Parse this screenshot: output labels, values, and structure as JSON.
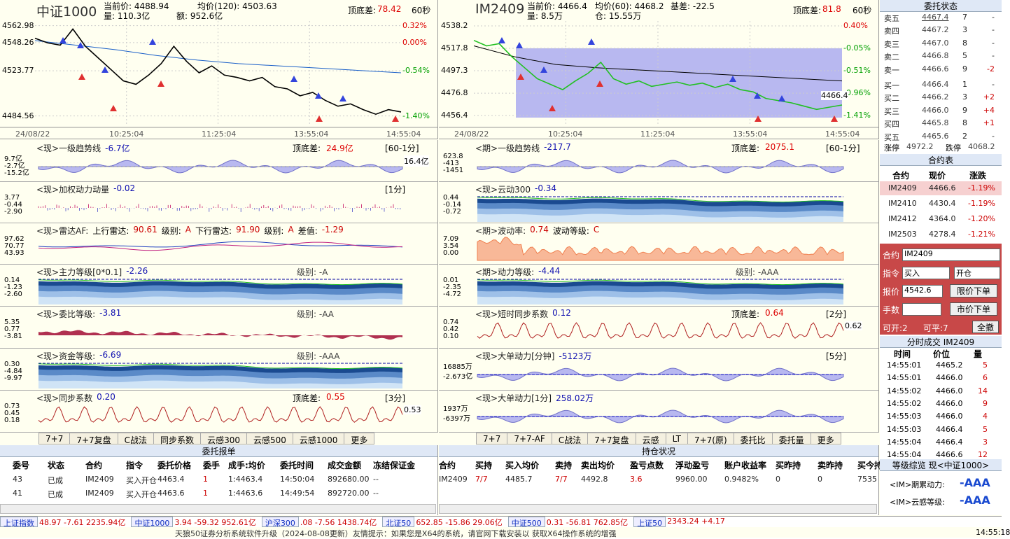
{
  "main_left": {
    "name": "中证1000",
    "info": [
      "当前价: 4488.94",
      "均价(120): 4503.63",
      "量: 110.3亿",
      "额: 952.6亿"
    ],
    "diff_label": "顶底差:",
    "diff": "78.42",
    "period": "60秒",
    "ylim": [
      4477,
      4567
    ],
    "yticks": [
      4484.56,
      4523.77,
      4548.26,
      4562.98
    ],
    "pct": [
      "-1.40%",
      "-0.54%",
      "0.00%",
      "0.32%"
    ],
    "xlabels": [
      "24/08/22",
      "10:25:04",
      "11:25:04",
      "13:55:04",
      "14:55:04"
    ],
    "price": [
      4552,
      4548,
      4546,
      4560,
      4545,
      4535,
      4525,
      4515,
      4512,
      4520,
      4530,
      4545,
      4532,
      4522,
      4528,
      4520,
      4518,
      4515,
      4518,
      4510,
      4508,
      4502,
      4505,
      4498,
      4493,
      4495,
      4490,
      4486,
      4490,
      4488
    ],
    "ma": [
      4550,
      4546,
      4542,
      4537,
      4533,
      4530,
      4528,
      4526,
      4524,
      4522
    ]
  },
  "main_right": {
    "name": "IM2409",
    "info": [
      "当前价: 4466.4",
      "均价(60): 4468.2",
      "基差: -22.5",
      "量: 8.5万",
      "仓: 15.55万"
    ],
    "diff_label": "顶底差:",
    "diff": "81.8",
    "period": "60秒",
    "ylim": [
      4448.1,
      4542.7
    ],
    "yticks": [
      4456.4,
      4476.8,
      4497.3,
      4517.8,
      4538.2
    ],
    "pct": [
      "-1.41%",
      "-0.96%",
      "-0.51%",
      "-0.05%",
      "0.40%"
    ],
    "xlabels": [
      "24/08/22",
      "10:25:04",
      "11:25:04",
      "13:55:04",
      "14:55:04"
    ],
    "last": "4466.4",
    "price": [
      4525,
      4520,
      4522,
      4510,
      4500,
      4490,
      4485,
      4480,
      4488,
      4495,
      4505,
      4490,
      4485,
      4488,
      4483,
      4485,
      4487,
      4484,
      4486,
      4482,
      4485,
      4480,
      4478,
      4472,
      4470,
      4468,
      4465,
      4462,
      4464,
      4466
    ],
    "ma": [
      4520,
      4510,
      4503,
      4500,
      4498,
      4496,
      4494,
      4492,
      4490,
      4488
    ]
  },
  "panels_left": [
    {
      "title": "<现>一级趋势线",
      "value": "-6.7亿",
      "diff_label": "顶底差:",
      "diff": "24.9亿",
      "period": "[60-1分]",
      "ylabels": [
        "9.7亿",
        "-2.7亿",
        "-15.2亿"
      ],
      "side": "16.4亿"
    },
    {
      "title": "<现>加权动力动量",
      "value": "-0.02",
      "period": "[1分]",
      "ylabels": [
        "3.77",
        "-0.44",
        "-2.90"
      ]
    },
    {
      "title": "<现>雷达AF:",
      "items": [
        {
          "l": "上行雷达:",
          "v": "90.61"
        },
        {
          "l": "级别:",
          "v": "A"
        },
        {
          "l": "下行雷达:",
          "v": "91.90"
        },
        {
          "l": "级别:",
          "v": "A"
        },
        {
          "l": "差值:",
          "v": "-1.29"
        }
      ],
      "ylabels": [
        "97.62",
        "70.77",
        "43.93"
      ]
    },
    {
      "title": "<现>主力等级[0*0.1]",
      "value": "-2.26",
      "level": "级别: -A",
      "ylabels": [
        "0.14",
        "-1.23",
        "-2.60"
      ]
    },
    {
      "title": "<现>委比等级:",
      "value": "-3.81",
      "level": "级别: -AA",
      "ylabels": [
        "5.35",
        "0.77",
        "-3.81"
      ]
    },
    {
      "title": "<现>资金等级:",
      "value": "-6.69",
      "level": "级别: -AAA",
      "ylabels": [
        "0.30",
        "-4.84",
        "-9.97"
      ]
    },
    {
      "title": "<现>同步系数",
      "value": "0.20",
      "diff_label": "顶底差:",
      "diff": "0.55",
      "period": "[3分]",
      "ylabels": [
        "0.73",
        "0.45",
        "0.18"
      ],
      "side": "0.53"
    }
  ],
  "panels_right": [
    {
      "title": "<期>一级趋势线",
      "value": "-217.7",
      "diff_label": "顶底差:",
      "diff": "2075.1",
      "period": "[60-1分]",
      "ylabels": [
        "623.8",
        "-413",
        "-1451"
      ]
    },
    {
      "title": "<现>云动300",
      "value": "-0.34",
      "ylabels": [
        "0.44",
        "-0.14",
        "-0.72"
      ]
    },
    {
      "title": "<期>波动率:",
      "items": [
        {
          "l": "",
          "v": "0.74"
        },
        {
          "l": "波动等级:",
          "v": "C"
        }
      ],
      "ylabels": [
        "7.09",
        "3.54",
        "0.00"
      ]
    },
    {
      "title": "<期>动力等级:",
      "value": "-4.44",
      "level": "级别: -AAA",
      "ylabels": [
        "0.01",
        "-2.35",
        "-4.72"
      ]
    },
    {
      "title": "<现>短时同步系数",
      "value": "0.12",
      "diff_label": "顶底差:",
      "diff": "0.64",
      "period": "[2分]",
      "ylabels": [
        "0.74",
        "0.42",
        "0.10"
      ],
      "side": "0.62"
    },
    {
      "title": "<现>大单动力[分钟]",
      "value": "-5123万",
      "period": "[5分]",
      "ylabels": [
        "16885万",
        "-2.673亿"
      ]
    },
    {
      "title": "<现>大单动力[1分]",
      "value": "258.02万",
      "ylabels": [
        "1937万",
        "-6397万"
      ]
    }
  ],
  "tabs_left": [
    "7+7",
    "7+7复盘",
    "C战法",
    "同步系数",
    "云感300",
    "云感500",
    "云感1000",
    "更多"
  ],
  "tabs_right": [
    "7+7",
    "7+7-AF",
    "C战法",
    "7+7复盘",
    "云感",
    "LT",
    "7+7(原)",
    "委托比",
    "委托量",
    "更多"
  ],
  "orders": {
    "title": "委托报单",
    "headers": [
      "委号",
      "状态",
      "合约",
      "指令",
      "委托价格",
      "委手",
      "成手:均价",
      "委托时间",
      "成交金额",
      "冻结保证金"
    ],
    "rows": [
      [
        "43",
        "已成",
        "IM2409",
        "买入开仓",
        "4463.4",
        "1",
        "1:4463.4",
        "14:50:04",
        "892680.00",
        "--"
      ],
      [
        "41",
        "已成",
        "IM2409",
        "买入开仓",
        "4463.6",
        "1",
        "1:4463.6",
        "14:49:54",
        "892720.00",
        "--"
      ]
    ]
  },
  "positions": {
    "title": "持仓状况",
    "headers": [
      "合约",
      "买持",
      "买入均价",
      "卖持",
      "卖出均价",
      "盈亏点数",
      "浮动盈亏",
      "账户收益率",
      "买昨持",
      "卖昨持",
      "买今持"
    ],
    "rows": [
      [
        "IM2409",
        "7/7",
        "4485.7",
        "7/7",
        "4492.8",
        "3.6",
        "9960.00",
        "0.9482%",
        "0",
        "0",
        "7535"
      ]
    ]
  },
  "book": {
    "title": "委托状态",
    "rows": [
      [
        "卖五",
        "4467.4",
        "7",
        "-"
      ],
      [
        "卖四",
        "4467.2",
        "3",
        "-"
      ],
      [
        "卖三",
        "4467.0",
        "8",
        "-"
      ],
      [
        "卖二",
        "4466.8",
        "5",
        "-"
      ],
      [
        "卖一",
        "4466.6",
        "9",
        "-2"
      ],
      [
        "买一",
        "4466.4",
        "1",
        "-"
      ],
      [
        "买二",
        "4466.2",
        "3",
        "+2"
      ],
      [
        "买三",
        "4466.0",
        "9",
        "+4"
      ],
      [
        "买四",
        "4465.8",
        "8",
        "+1"
      ],
      [
        "买五",
        "4465.6",
        "2",
        "-"
      ]
    ],
    "up_label": "涨停",
    "up": "4972.2",
    "down_label": "跌停",
    "down": "4068.2"
  },
  "contracts": {
    "title": "合约表",
    "headers": [
      "合约",
      "现价",
      "涨跌"
    ],
    "rows": [
      [
        "IM2409",
        "4466.6",
        "-1.19%"
      ],
      [
        "IM2410",
        "4430.4",
        "-1.19%"
      ],
      [
        "IM2412",
        "4364.0",
        "-1.20%"
      ],
      [
        "IM2503",
        "4278.4",
        "-1.21%"
      ]
    ]
  },
  "form": {
    "contract_label": "合约",
    "contract": "IM2409",
    "cmd_label": "指令",
    "side": "买入",
    "open": "开仓",
    "price_label": "报价",
    "price": "4542.6",
    "limit_btn": "限价下单",
    "qty_label": "手数",
    "market_btn": "市价下单",
    "can_open": "可开:2",
    "can_close": "可平:7",
    "cancel_btn": "全撤"
  },
  "ticks": {
    "title": "分时成交  IM2409",
    "headers": [
      "时间",
      "价位",
      "量"
    ],
    "rows": [
      [
        "14:55:01",
        "4465.2",
        "5"
      ],
      [
        "14:55:01",
        "4466.0",
        "6"
      ],
      [
        "14:55:02",
        "4466.0",
        "14"
      ],
      [
        "14:55:02",
        "4466.0",
        "9"
      ],
      [
        "14:55:03",
        "4466.0",
        "4"
      ],
      [
        "14:55:03",
        "4466.4",
        "5"
      ],
      [
        "14:55:04",
        "4466.4",
        "3"
      ],
      [
        "14:55:04",
        "4466.6",
        "12"
      ]
    ]
  },
  "levels": {
    "title": "等级综览 现<中证1000>",
    "rows": [
      {
        "l": "<IM>期累动力:",
        "v": "-AAA"
      },
      {
        "l": "<IM>云感等级:",
        "v": "-AAA"
      }
    ]
  },
  "status": [
    {
      "l": "上证指数",
      "v": "48.97  -7.61  2235.94亿"
    },
    {
      "l": "中证1000",
      "v": "3.94  -59.32  952.61亿"
    },
    {
      "l": "沪深300",
      "v": ".08  -7.56  1438.74亿"
    },
    {
      "l": "北证50",
      "v": "652.85  -15.86  29.06亿"
    },
    {
      "l": "中证500",
      "v": "0.31  -56.81  762.85亿"
    },
    {
      "l": "上证50",
      "v": "2343.24  +4.17"
    }
  ],
  "marquee": "天狼50证券分析系统软件升级（2024-08-08更新）友情提示：如果您是X64的系统，请官网下载安装以 获取X64操作系统的增强",
  "clock": "14:55:18"
}
